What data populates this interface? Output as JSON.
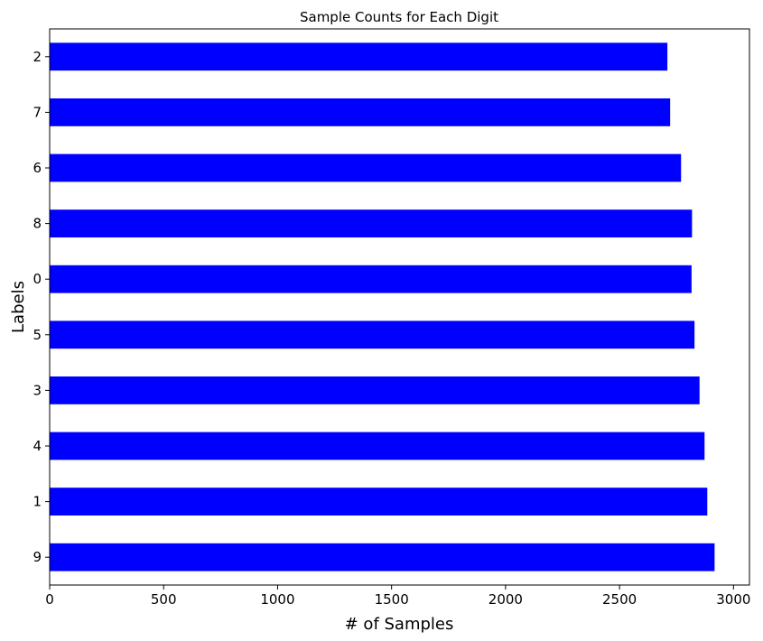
{
  "chart_data": {
    "type": "bar",
    "orientation": "horizontal",
    "title": "Sample Counts for Each Digit",
    "xlabel": "# of Samples",
    "ylabel": "Labels",
    "categories": [
      "2",
      "7",
      "6",
      "8",
      "0",
      "5",
      "3",
      "4",
      "1",
      "9"
    ],
    "values": [
      2710,
      2722,
      2770,
      2818,
      2816,
      2829,
      2851,
      2873,
      2885,
      2917
    ],
    "xlim": [
      0,
      3070
    ],
    "xticks": [
      0,
      500,
      1000,
      1500,
      2000,
      2500,
      3000
    ],
    "bar_color": "#0000ff",
    "grid": false
  }
}
